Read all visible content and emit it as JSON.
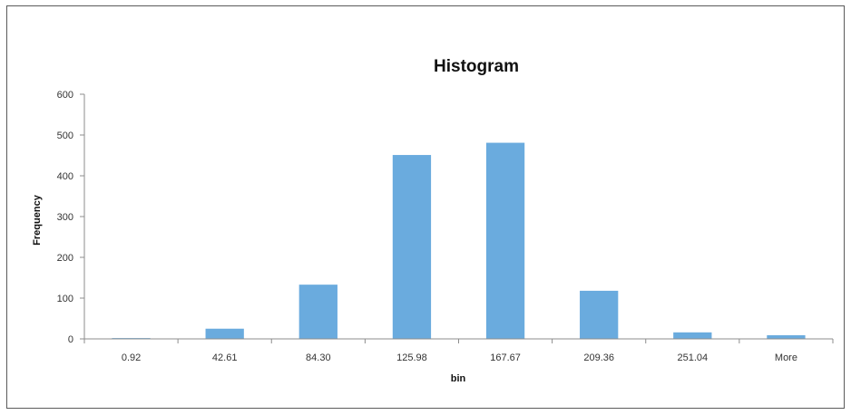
{
  "chart_data": {
    "type": "bar",
    "title": "Histogram",
    "xlabel": "bin",
    "ylabel": "Frequency",
    "categories": [
      "0.92",
      "42.61",
      "84.30",
      "125.98",
      "167.67",
      "209.36",
      "251.04",
      "More"
    ],
    "values": [
      2,
      25,
      133,
      451,
      481,
      118,
      16,
      9
    ],
    "ylim": [
      0,
      600
    ],
    "yticks": [
      0,
      100,
      200,
      300,
      400,
      500,
      600
    ],
    "ytick_labels": [
      "0",
      "100",
      "200",
      "300",
      "400",
      "500",
      "600"
    ],
    "grid": false,
    "legend": "none",
    "bar_color": "#6aabde"
  }
}
